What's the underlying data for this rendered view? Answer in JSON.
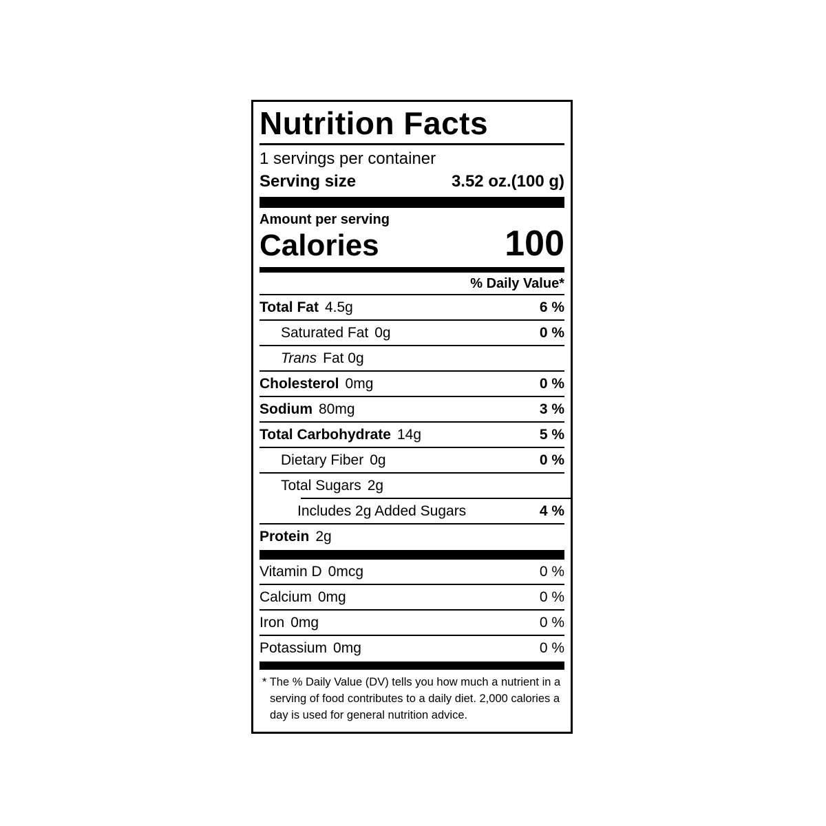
{
  "label": {
    "title": "Nutrition Facts",
    "servings_per_container": "1 servings per container",
    "serving_size_label": "Serving size",
    "serving_size_value": "3.52 oz.(100 g)",
    "amount_per_serving": "Amount per serving",
    "calories_label": "Calories",
    "calories_value": "100",
    "daily_value_header": "% Daily Value*",
    "nutrients": [
      {
        "name": "Total Fat",
        "amount": "4.5g",
        "dv": "6 %"
      },
      {
        "name": "Saturated Fat",
        "amount": "0g",
        "dv": "0 %"
      },
      {
        "name": "Trans",
        "amount": "Fat 0g",
        "dv": ""
      },
      {
        "name": "Cholesterol",
        "amount": "0mg",
        "dv": "0 %"
      },
      {
        "name": "Sodium",
        "amount": "80mg",
        "dv": "3 %"
      },
      {
        "name": "Total Carbohydrate",
        "amount": "14g",
        "dv": "5 %"
      },
      {
        "name": "Dietary Fiber",
        "amount": "0g",
        "dv": "0 %"
      },
      {
        "name": "Total Sugars",
        "amount": "2g",
        "dv": ""
      },
      {
        "name": "Includes 2g Added Sugars",
        "amount": "",
        "dv": "4 %"
      },
      {
        "name": "Protein",
        "amount": "2g",
        "dv": ""
      }
    ],
    "micronutrients": [
      {
        "name": "Vitamin D",
        "amount": "0mcg",
        "dv": "0 %"
      },
      {
        "name": "Calcium",
        "amount": "0mg",
        "dv": "0 %"
      },
      {
        "name": "Iron",
        "amount": "0mg",
        "dv": "0 %"
      },
      {
        "name": "Potassium",
        "amount": "0mg",
        "dv": "0 %"
      }
    ],
    "footnote": "* The % Daily Value (DV) tells you how much a nutrient in a serving of food contributes to a daily diet. 2,000 calories a day is used for general nutrition advice."
  }
}
